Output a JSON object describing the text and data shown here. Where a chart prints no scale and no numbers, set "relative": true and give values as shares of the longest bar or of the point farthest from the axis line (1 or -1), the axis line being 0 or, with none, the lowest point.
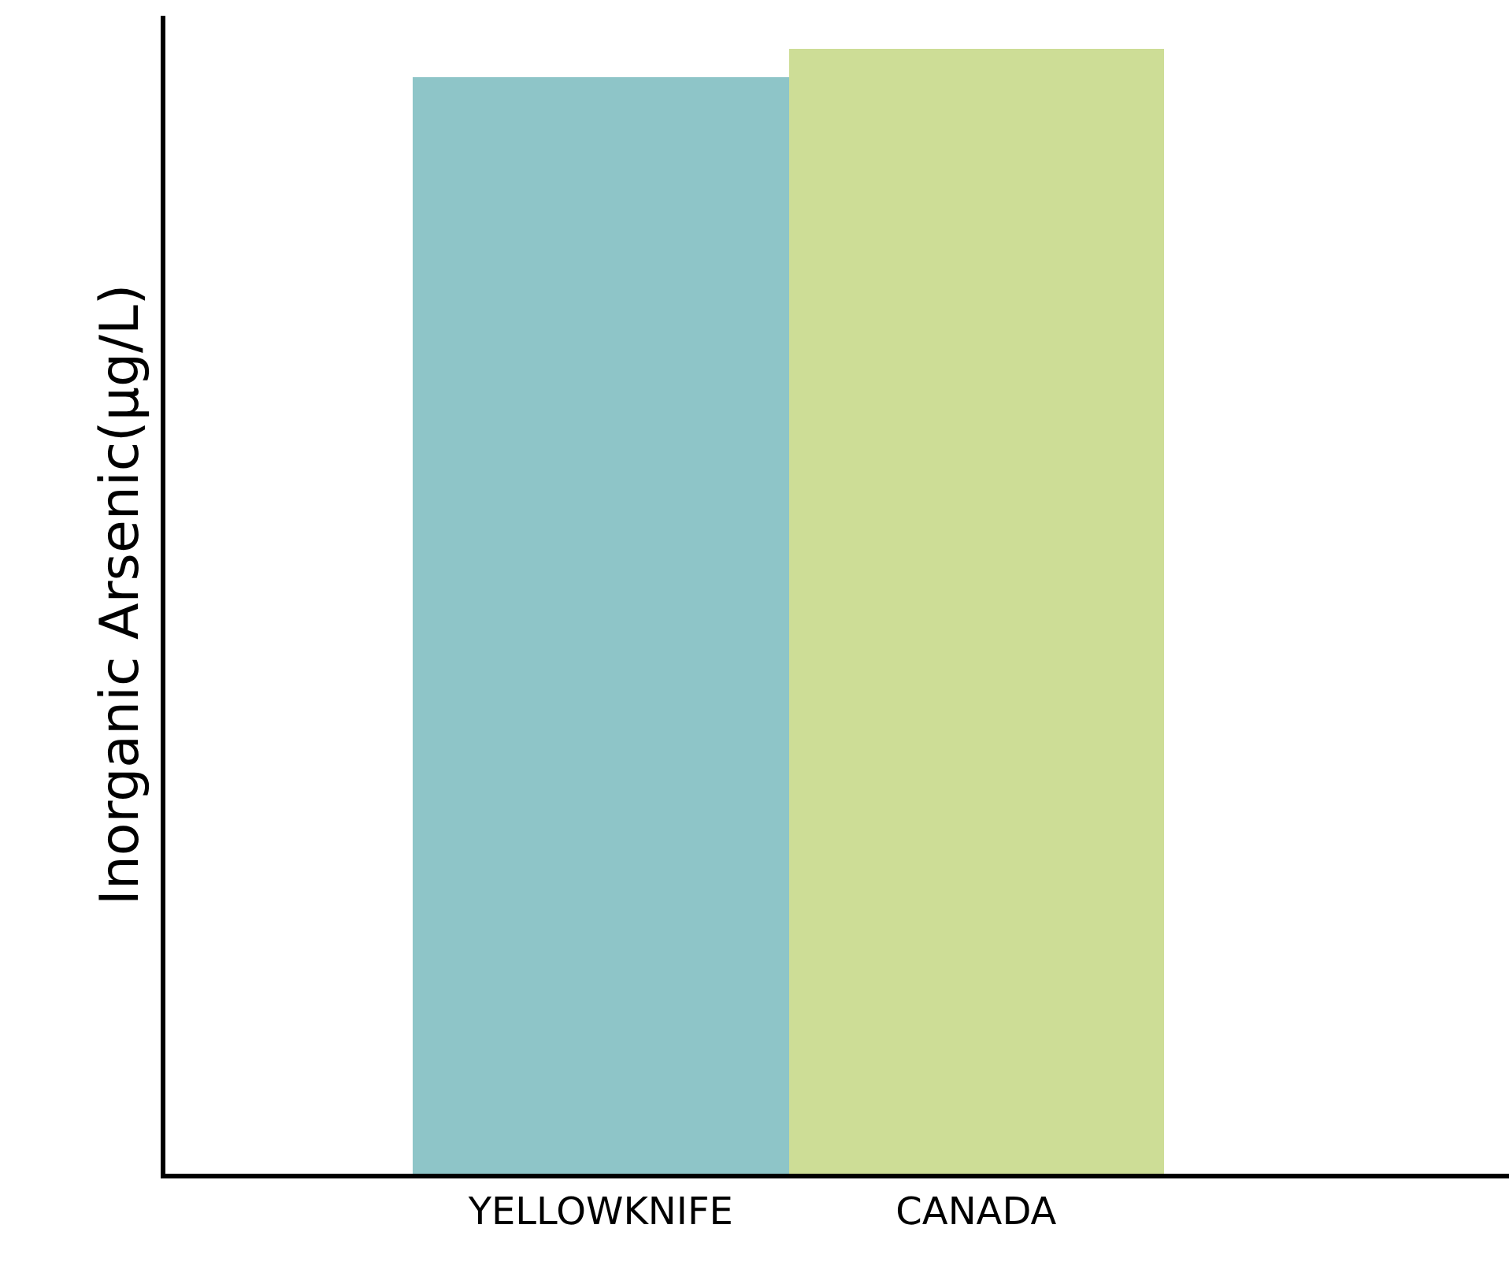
{
  "chart_data": {
    "type": "bar",
    "ylabel": "Inorganic Arsenic(µg/L)",
    "categories": [
      "YELLOWKNIFE",
      "CANADA"
    ],
    "values": [
      0.975,
      1
    ],
    "colors": [
      "#8ec5c8",
      "#cddd96"
    ],
    "relative": true
  }
}
